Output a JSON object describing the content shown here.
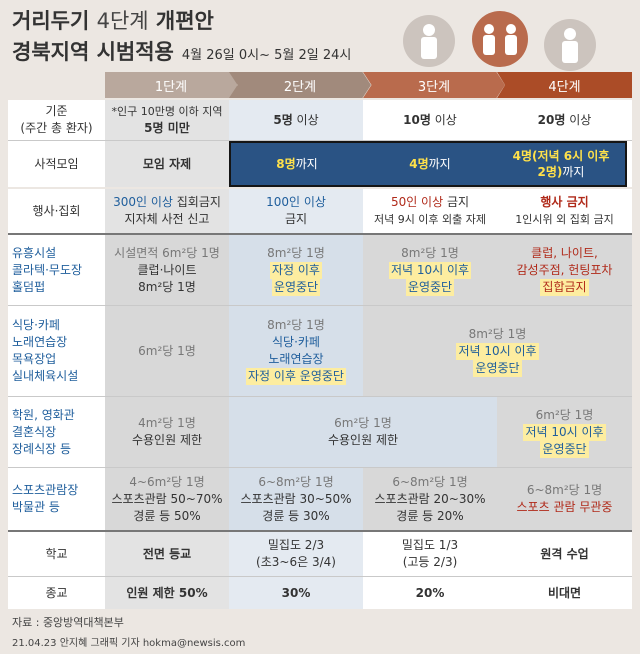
{
  "title": {
    "line1_bold_a": "거리두기",
    "line1_thin": "4단계",
    "line1_bold_b": "개편안",
    "line2": "경북지역 시범적용",
    "period": "4월 26일 0시~ 5월 2일 24시"
  },
  "stages": [
    "1단계",
    "2단계",
    "3단계",
    "4단계"
  ],
  "colors": {
    "stage1": "#b9a89d",
    "stage2": "#a18a7c",
    "stage3": "#b96b4d",
    "stage4": "#ab4c27",
    "band": "#2a5384"
  },
  "rows": {
    "criteria": {
      "label1": "기준",
      "label2": "(주간 총 환자)",
      "s1_note": "*인구 10만명 이하 지역",
      "s1_value": "5명 미만",
      "s2_num": "5명",
      "s2_suffix": " 이상",
      "s3_num": "10명",
      "s3_suffix": " 이상",
      "s4_num": "20명",
      "s4_suffix": " 이상"
    },
    "gathering": {
      "label": "사적모임",
      "s1": "모임 자제",
      "s2_num": "8명",
      "s2_suffix": "까지",
      "s3_num": "4명",
      "s3_suffix": "까지",
      "s4_line1": "4명(저녁 6시 이후",
      "s4_line2_num": "2명)",
      "s4_line2_suffix": "까지"
    },
    "events": {
      "label": "행사·집회",
      "s1_a": "300인 이상",
      "s1_b": " 집회금지",
      "s1_c": "지자체 사전 신고",
      "s2_a": "100인 이상",
      "s2_b": "금지",
      "s3_a": "50인 이상",
      "s3_b": " 금지",
      "s3_c": "저녁 9시 이후 외출 자제",
      "s4_a": "행사 금지",
      "s4_b": "1인시위 외 집회 금지"
    },
    "entertainment": {
      "label1": "유흥시설",
      "label2": "콜라텍·무도장",
      "label3": "홀덤펍",
      "s1_a": "시설면적 6m²당 1명",
      "s1_b": "클럽·나이트",
      "s1_c": "8m²당 1명",
      "s2_a": "8m²당 1명",
      "s2_b": "자정 이후",
      "s2_c": "운영중단",
      "s3_a": "8m²당 1명",
      "s3_b": "저녁 10시 이후",
      "s3_c": "운영중단",
      "s4_a": "클럽, 나이트,",
      "s4_b": "감성주점, 헌팅포차",
      "s4_c": "집합금지"
    },
    "restaurant": {
      "label1": "식당·카페",
      "label2": "노래연습장",
      "label3": "목욕장업",
      "label4": "실내체육시설",
      "s1": "6m²당 1명",
      "s2_a": "8m²당 1명",
      "s2_b": "식당·카페",
      "s2_c": "노래연습장",
      "s2_d": "자정 이후 운영중단",
      "s34_a": "8m²당 1명",
      "s34_b": "저녁 10시 이후",
      "s34_c": "운영중단"
    },
    "academy": {
      "label1": "학원, 영화관",
      "label2": "결혼식장",
      "label3": "장례식장 등",
      "s1_a": "4m²당 1명",
      "s1_b": "수용인원 제한",
      "s23_a": "6m²당 1명",
      "s23_b": "수용인원 제한",
      "s4_a": "6m²당 1명",
      "s4_b": "저녁 10시 이후",
      "s4_c": "운영중단"
    },
    "sports": {
      "label1": "스포츠관람장",
      "label2": "박물관 등",
      "s1_a": "4~6m²당 1명",
      "s1_b": "스포츠관람 50~70%",
      "s1_c": "경륜 등 50%",
      "s2_a": "6~8m²당 1명",
      "s2_b": "스포츠관람 30~50%",
      "s2_c": "경륜 등 30%",
      "s3_a": "6~8m²당 1명",
      "s3_b": "스포츠관람 20~30%",
      "s3_c": "경륜 등 20%",
      "s4_a": "6~8m²당 1명",
      "s4_b": "스포츠 관람 무관중"
    },
    "school": {
      "label": "학교",
      "s1": "전면 등교",
      "s2_a": "밀집도 2/3",
      "s2_b": "(초3~6은 3/4)",
      "s3_a": "밀집도 1/3",
      "s3_b": "(고등 2/3)",
      "s4": "원격 수업"
    },
    "religion": {
      "label": "종교",
      "s1": "인원 제한 50%",
      "s2": "30%",
      "s3": "20%",
      "s4": "비대면"
    }
  },
  "footer": {
    "source": "자료 : 중앙방역대책본부",
    "credit": "21.04.23 안지혜 그래픽 기자 hokma@newsis.com"
  },
  "icons": [
    "person-icon"
  ]
}
